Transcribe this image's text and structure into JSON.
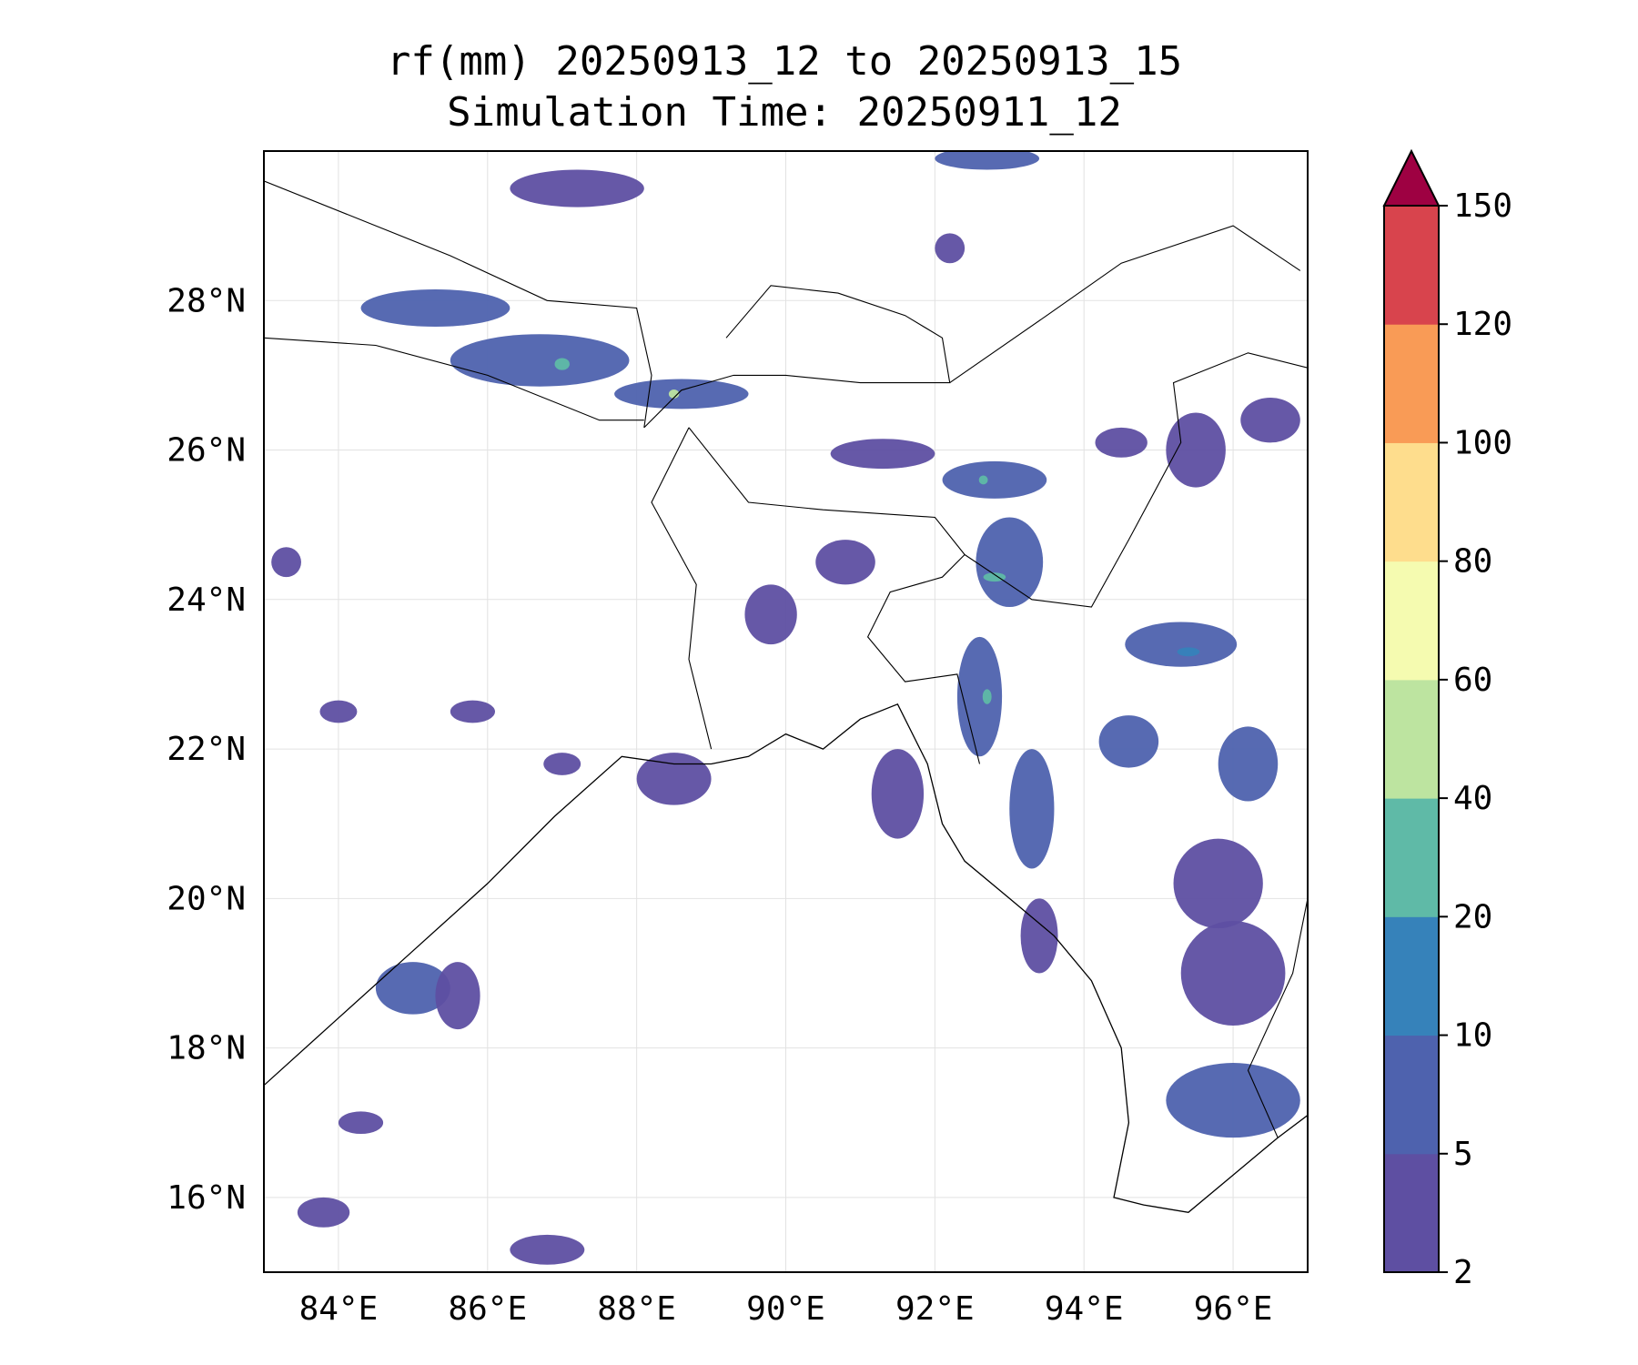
{
  "title": {
    "line1": "rf(mm) 20250913_12 to 20250913_15",
    "line2": "Simulation Time: 20250911_12"
  },
  "map": {
    "lon_range": [
      83,
      97
    ],
    "lat_range": [
      15,
      30
    ],
    "lon_ticks": [
      {
        "value": 84,
        "label": "84°E"
      },
      {
        "value": 86,
        "label": "86°E"
      },
      {
        "value": 88,
        "label": "88°E"
      },
      {
        "value": 90,
        "label": "90°E"
      },
      {
        "value": 92,
        "label": "92°E"
      },
      {
        "value": 94,
        "label": "94°E"
      },
      {
        "value": 96,
        "label": "96°E"
      }
    ],
    "lat_ticks": [
      {
        "value": 16,
        "label": "16°N"
      },
      {
        "value": 18,
        "label": "18°N"
      },
      {
        "value": 20,
        "label": "20°N"
      },
      {
        "value": 22,
        "label": "22°N"
      },
      {
        "value": 24,
        "label": "24°N"
      },
      {
        "value": 26,
        "label": "26°N"
      },
      {
        "value": 28,
        "label": "28°N"
      }
    ],
    "gridlines": true,
    "coastline": [
      [
        83,
        17.5
      ],
      [
        84,
        18.4
      ],
      [
        85,
        19.3
      ],
      [
        86,
        20.2
      ],
      [
        86.9,
        21.1
      ],
      [
        87.8,
        21.9
      ],
      [
        88.5,
        21.8
      ],
      [
        89,
        21.8
      ],
      [
        89.5,
        21.9
      ],
      [
        90,
        22.2
      ],
      [
        90.5,
        22.0
      ],
      [
        91,
        22.4
      ],
      [
        91.5,
        22.6
      ],
      [
        91.9,
        21.8
      ],
      [
        92.1,
        21.0
      ],
      [
        92.4,
        20.5
      ],
      [
        93,
        20.0
      ],
      [
        93.6,
        19.5
      ],
      [
        94.1,
        18.9
      ],
      [
        94.5,
        18.0
      ],
      [
        94.6,
        17.0
      ],
      [
        94.4,
        16.0
      ],
      [
        94.8,
        15.9
      ],
      [
        95.4,
        15.8
      ],
      [
        96,
        16.3
      ],
      [
        96.6,
        16.8
      ],
      [
        97,
        17.1
      ]
    ],
    "borders": [
      [
        [
          83,
          29.6
        ],
        [
          84.5,
          29.0
        ],
        [
          85.5,
          28.6
        ],
        [
          86.8,
          28.0
        ],
        [
          88,
          27.9
        ],
        [
          88.2,
          27.0
        ],
        [
          88.1,
          26.3
        ]
      ],
      [
        [
          83,
          27.5
        ],
        [
          84.5,
          27.4
        ],
        [
          86,
          27.0
        ],
        [
          87.5,
          26.4
        ],
        [
          88.1,
          26.4
        ]
      ],
      [
        [
          88.1,
          26.3
        ],
        [
          88.6,
          26.8
        ],
        [
          89.3,
          27.0
        ],
        [
          90,
          27.0
        ],
        [
          91,
          26.9
        ],
        [
          92.2,
          26.9
        ],
        [
          92.1,
          27.5
        ],
        [
          91.6,
          27.8
        ],
        [
          90.7,
          28.1
        ],
        [
          89.8,
          28.2
        ],
        [
          89.2,
          27.5
        ]
      ],
      [
        [
          88.7,
          26.3
        ],
        [
          89.5,
          25.3
        ],
        [
          90.5,
          25.2
        ],
        [
          92.0,
          25.1
        ],
        [
          92.4,
          24.6
        ],
        [
          92.1,
          24.3
        ],
        [
          91.4,
          24.1
        ],
        [
          91.1,
          23.5
        ],
        [
          91.6,
          22.9
        ],
        [
          92.3,
          23.0
        ],
        [
          92.6,
          21.8
        ]
      ],
      [
        [
          88.7,
          26.3
        ],
        [
          88.2,
          25.3
        ],
        [
          88.8,
          24.2
        ],
        [
          88.7,
          23.2
        ],
        [
          89.0,
          22.0
        ]
      ],
      [
        [
          92.4,
          24.6
        ],
        [
          93.3,
          24.0
        ],
        [
          94.1,
          23.9
        ],
        [
          94.6,
          24.8
        ],
        [
          95.3,
          26.1
        ],
        [
          95.2,
          26.9
        ],
        [
          96.2,
          27.3
        ],
        [
          97,
          27.1
        ]
      ],
      [
        [
          92.2,
          26.9
        ],
        [
          93.5,
          27.8
        ],
        [
          94.5,
          28.5
        ],
        [
          96,
          29.0
        ],
        [
          96.9,
          28.4
        ]
      ],
      [
        [
          96.6,
          16.8
        ],
        [
          96.2,
          17.7
        ],
        [
          96.8,
          19.0
        ],
        [
          97,
          20.0
        ]
      ]
    ]
  },
  "chart_data": {
    "type": "heatmap",
    "variable": "rf(mm)",
    "colorbar": {
      "levels": [
        2,
        5,
        10,
        20,
        40,
        60,
        80,
        100,
        120,
        150
      ],
      "tick_labels": [
        "2",
        "5",
        "10",
        "20",
        "40",
        "60",
        "80",
        "100",
        "120",
        "150"
      ],
      "colors": [
        "#5e4fa2",
        "#4e62ae",
        "#3682ba",
        "#5fbaa7",
        "#bde4a0",
        "#f5fbb0",
        "#fedd8d",
        "#f99b56",
        "#d8444d",
        "#9e0142"
      ],
      "extend": "max"
    },
    "blobs": [
      {
        "lon": 85.3,
        "lat": 27.9,
        "rx": 1.0,
        "ry": 0.25,
        "level": 2
      },
      {
        "lon": 86.7,
        "lat": 27.2,
        "rx": 1.2,
        "ry": 0.35,
        "level": 2
      },
      {
        "lon": 87.0,
        "lat": 27.15,
        "rx": 0.1,
        "ry": 0.08,
        "level": 4
      },
      {
        "lon": 88.6,
        "lat": 26.75,
        "rx": 0.9,
        "ry": 0.2,
        "level": 2
      },
      {
        "lon": 88.5,
        "lat": 26.75,
        "rx": 0.07,
        "ry": 0.06,
        "level": 5
      },
      {
        "lon": 87.2,
        "lat": 29.5,
        "rx": 0.9,
        "ry": 0.25,
        "level": 1
      },
      {
        "lon": 92.7,
        "lat": 29.9,
        "rx": 0.7,
        "ry": 0.15,
        "level": 2
      },
      {
        "lon": 92.2,
        "lat": 28.7,
        "rx": 0.2,
        "ry": 0.2,
        "level": 1
      },
      {
        "lon": 91.3,
        "lat": 25.95,
        "rx": 0.7,
        "ry": 0.2,
        "level": 1
      },
      {
        "lon": 92.8,
        "lat": 25.6,
        "rx": 0.7,
        "ry": 0.25,
        "level": 2
      },
      {
        "lon": 92.65,
        "lat": 25.6,
        "rx": 0.06,
        "ry": 0.06,
        "level": 4
      },
      {
        "lon": 93.0,
        "lat": 24.5,
        "rx": 0.45,
        "ry": 0.6,
        "level": 2
      },
      {
        "lon": 92.8,
        "lat": 24.3,
        "rx": 0.15,
        "ry": 0.06,
        "level": 4
      },
      {
        "lon": 92.6,
        "lat": 22.7,
        "rx": 0.3,
        "ry": 0.8,
        "level": 2
      },
      {
        "lon": 92.7,
        "lat": 22.7,
        "rx": 0.06,
        "ry": 0.1,
        "level": 4
      },
      {
        "lon": 93.3,
        "lat": 21.2,
        "rx": 0.3,
        "ry": 0.8,
        "level": 2
      },
      {
        "lon": 95.3,
        "lat": 23.4,
        "rx": 0.75,
        "ry": 0.3,
        "level": 2
      },
      {
        "lon": 95.4,
        "lat": 23.3,
        "rx": 0.15,
        "ry": 0.06,
        "level": 3
      },
      {
        "lon": 94.6,
        "lat": 22.1,
        "rx": 0.4,
        "ry": 0.35,
        "level": 2
      },
      {
        "lon": 96.2,
        "lat": 21.8,
        "rx": 0.4,
        "ry": 0.5,
        "level": 2
      },
      {
        "lon": 95.8,
        "lat": 20.2,
        "rx": 0.6,
        "ry": 0.6,
        "level": 1
      },
      {
        "lon": 96.0,
        "lat": 19.0,
        "rx": 0.7,
        "ry": 0.7,
        "level": 1
      },
      {
        "lon": 96.0,
        "lat": 17.3,
        "rx": 0.9,
        "ry": 0.5,
        "level": 2
      },
      {
        "lon": 95.5,
        "lat": 26.0,
        "rx": 0.4,
        "ry": 0.5,
        "level": 1
      },
      {
        "lon": 96.5,
        "lat": 26.4,
        "rx": 0.4,
        "ry": 0.3,
        "level": 1
      },
      {
        "lon": 85.0,
        "lat": 18.8,
        "rx": 0.5,
        "ry": 0.35,
        "level": 2
      },
      {
        "lon": 85.6,
        "lat": 18.7,
        "rx": 0.3,
        "ry": 0.45,
        "level": 1
      },
      {
        "lon": 86.8,
        "lat": 15.3,
        "rx": 0.5,
        "ry": 0.2,
        "level": 1
      },
      {
        "lon": 88.5,
        "lat": 21.6,
        "rx": 0.5,
        "ry": 0.35,
        "level": 1
      },
      {
        "lon": 91.5,
        "lat": 21.4,
        "rx": 0.35,
        "ry": 0.6,
        "level": 1
      },
      {
        "lon": 93.4,
        "lat": 19.5,
        "rx": 0.25,
        "ry": 0.5,
        "level": 1
      },
      {
        "lon": 94.5,
        "lat": 26.1,
        "rx": 0.35,
        "ry": 0.2,
        "level": 1
      },
      {
        "lon": 89.8,
        "lat": 23.8,
        "rx": 0.35,
        "ry": 0.4,
        "level": 1
      },
      {
        "lon": 90.8,
        "lat": 24.5,
        "rx": 0.4,
        "ry": 0.3,
        "level": 1
      },
      {
        "lon": 83.3,
        "lat": 24.5,
        "rx": 0.2,
        "ry": 0.2,
        "level": 1
      },
      {
        "lon": 84.0,
        "lat": 22.5,
        "rx": 0.25,
        "ry": 0.15,
        "level": 1
      },
      {
        "lon": 85.8,
        "lat": 22.5,
        "rx": 0.3,
        "ry": 0.15,
        "level": 1
      },
      {
        "lon": 83.8,
        "lat": 15.8,
        "rx": 0.35,
        "ry": 0.2,
        "level": 1
      },
      {
        "lon": 87.0,
        "lat": 21.8,
        "rx": 0.25,
        "ry": 0.15,
        "level": 1
      },
      {
        "lon": 84.3,
        "lat": 17.0,
        "rx": 0.3,
        "ry": 0.15,
        "level": 1
      }
    ]
  }
}
